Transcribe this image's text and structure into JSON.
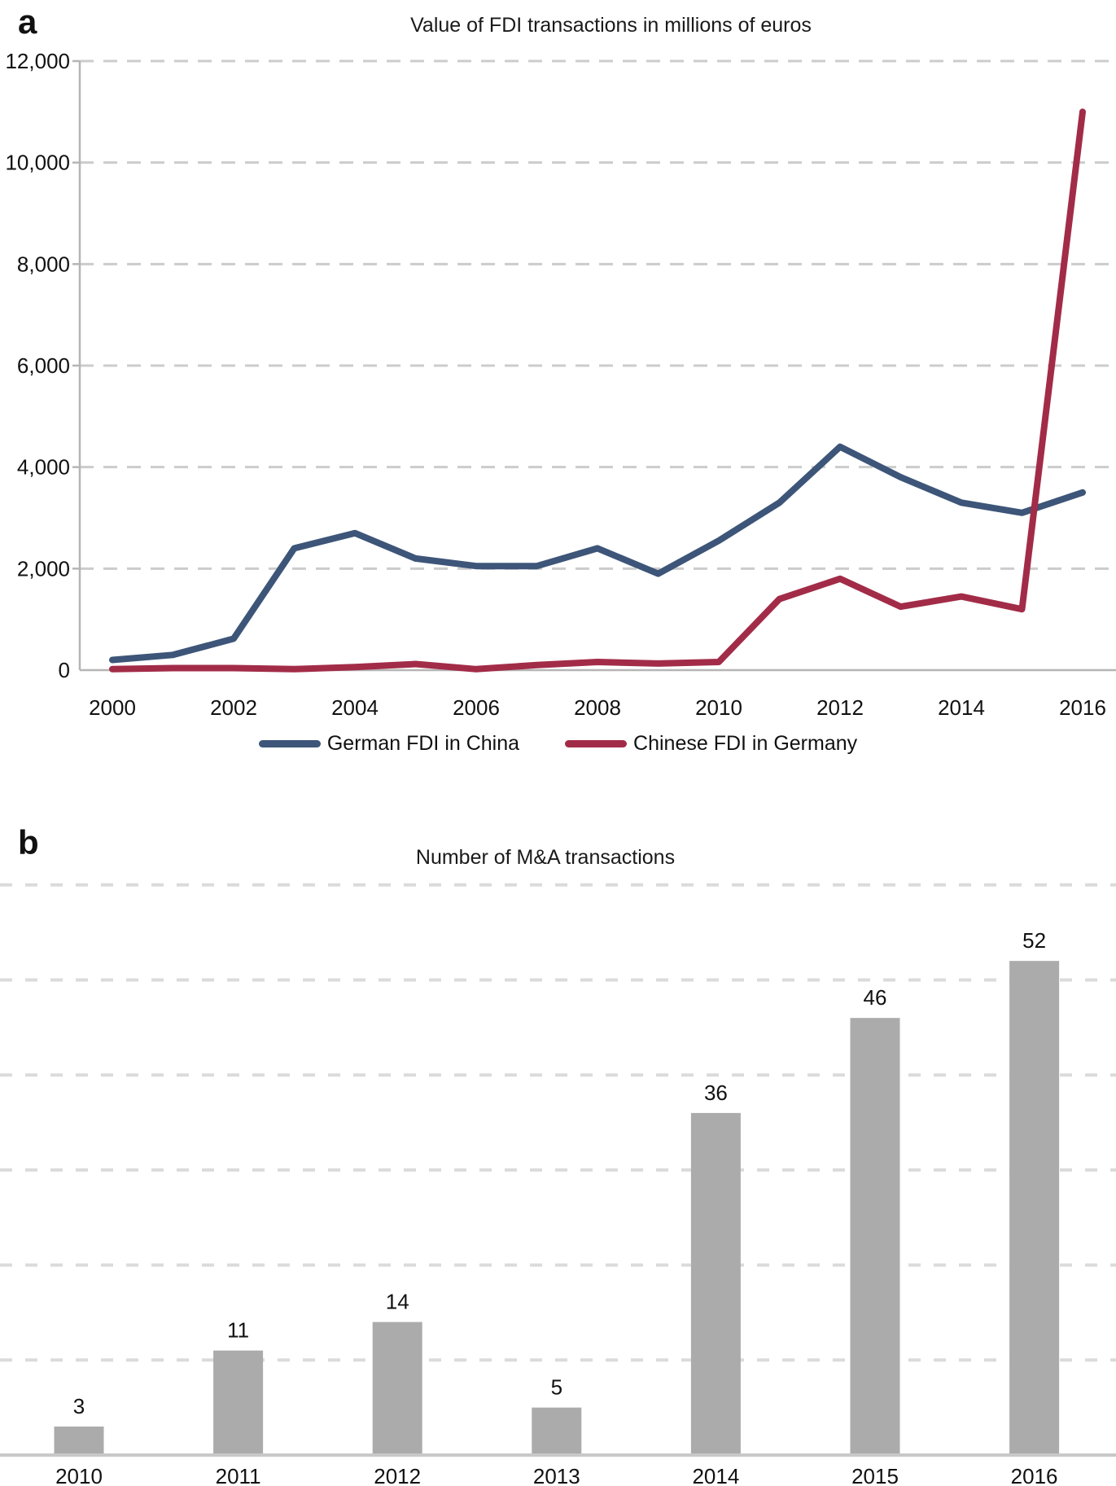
{
  "panel_a": {
    "panel_label": "a",
    "title": "Value of FDI transactions in millions of euros"
  },
  "panel_b": {
    "panel_label": "b",
    "title": "Number of M&A transactions"
  },
  "colors": {
    "german_fdi_line": "#3D5578",
    "chinese_fdi_line": "#A22C48",
    "bar_fill": "#ABABAB",
    "gridline_a": "#CCCCCC",
    "gridline_b": "#DBDBDB",
    "axis_line": "#B5B5B5",
    "label_text": "#111111"
  },
  "chart_data": [
    {
      "type": "line",
      "title": "Value of FDI transactions in millions of euros",
      "xlabel": "",
      "ylabel": "",
      "x": [
        2000,
        2001,
        2002,
        2003,
        2004,
        2005,
        2006,
        2007,
        2008,
        2009,
        2010,
        2011,
        2012,
        2013,
        2014,
        2015,
        2016
      ],
      "x_tick_years": [
        2000,
        2002,
        2004,
        2006,
        2008,
        2010,
        2012,
        2014,
        2016
      ],
      "x_tick_labels": [
        "2000",
        "2002",
        "2004",
        "2006",
        "2008",
        "2010",
        "2012",
        "2014",
        "2016"
      ],
      "y_tick_values": [
        0,
        2000,
        4000,
        6000,
        8000,
        10000,
        12000
      ],
      "y_tick_labels": [
        "0",
        "2,000",
        "4,000",
        "6,000",
        "8,000",
        "10,000",
        "12,000"
      ],
      "ylim": [
        0,
        12000
      ],
      "grid": "horizontal-dashed",
      "legend_position": "bottom-center",
      "series": [
        {
          "name": "German FDI in China",
          "color": "#3D5578",
          "values": [
            200,
            300,
            620,
            2400,
            2700,
            2200,
            2050,
            2050,
            2400,
            1900,
            2550,
            3300,
            4400,
            3800,
            3300,
            3100,
            3500
          ]
        },
        {
          "name": "Chinese FDI in Germany",
          "color": "#A22C48",
          "values": [
            20,
            40,
            40,
            20,
            60,
            120,
            20,
            100,
            160,
            130,
            160,
            1400,
            1800,
            1250,
            1450,
            1200,
            11000
          ]
        }
      ]
    },
    {
      "type": "bar",
      "title": "Number of M&A transactions",
      "xlabel": "",
      "ylabel": "",
      "categories": [
        "2010",
        "2011",
        "2012",
        "2013",
        "2014",
        "2015",
        "2016"
      ],
      "values": [
        3,
        11,
        14,
        5,
        36,
        46,
        52
      ],
      "value_labels": [
        "3",
        "11",
        "14",
        "5",
        "36",
        "46",
        "52"
      ],
      "ylim": [
        0,
        60
      ],
      "y_gridline_step": 10,
      "grid": "horizontal-dashed-unlabeled",
      "legend_position": "none"
    }
  ]
}
